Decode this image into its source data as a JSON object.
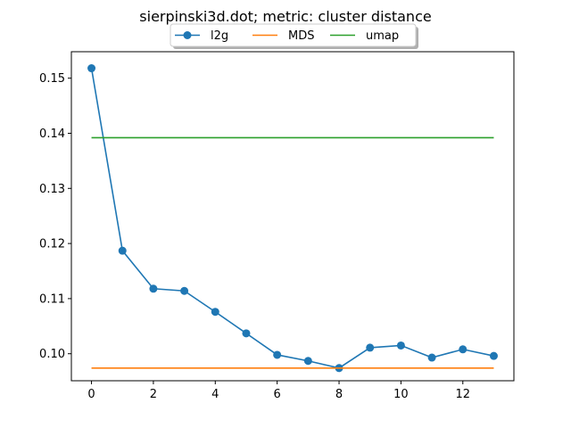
{
  "chart_data": {
    "type": "line",
    "title": "sierpinski3d.dot; metric: cluster distance",
    "xlabel": "",
    "ylabel": "",
    "xlim": [
      -0.65,
      13.65
    ],
    "ylim": [
      0.0951,
      0.1548
    ],
    "xticks": [
      0,
      2,
      4,
      6,
      8,
      10,
      12
    ],
    "yticks": [
      0.1,
      0.11,
      0.12,
      0.13,
      0.14,
      0.15
    ],
    "ytick_labels": [
      "0.10",
      "0.11",
      "0.12",
      "0.13",
      "0.14",
      "0.15"
    ],
    "grid": false,
    "legend_position": "top-center",
    "series": [
      {
        "name": "l2g",
        "color": "#1f77b4",
        "marker": "circle",
        "x": [
          0,
          1,
          2,
          3,
          4,
          5,
          6,
          7,
          8,
          9,
          10,
          11,
          12,
          13
        ],
        "y": [
          0.1518,
          0.1187,
          0.1118,
          0.1114,
          0.1076,
          0.1037,
          0.0998,
          0.0987,
          0.0974,
          0.1011,
          0.1015,
          0.0993,
          0.1008,
          0.0996
        ]
      },
      {
        "name": "MDS",
        "color": "#ff7f0e",
        "marker": "none",
        "x": [
          0,
          13
        ],
        "y": [
          0.0974,
          0.0974
        ]
      },
      {
        "name": "umap",
        "color": "#2ca02c",
        "marker": "none",
        "x": [
          0,
          13
        ],
        "y": [
          0.1392,
          0.1392
        ]
      }
    ]
  }
}
